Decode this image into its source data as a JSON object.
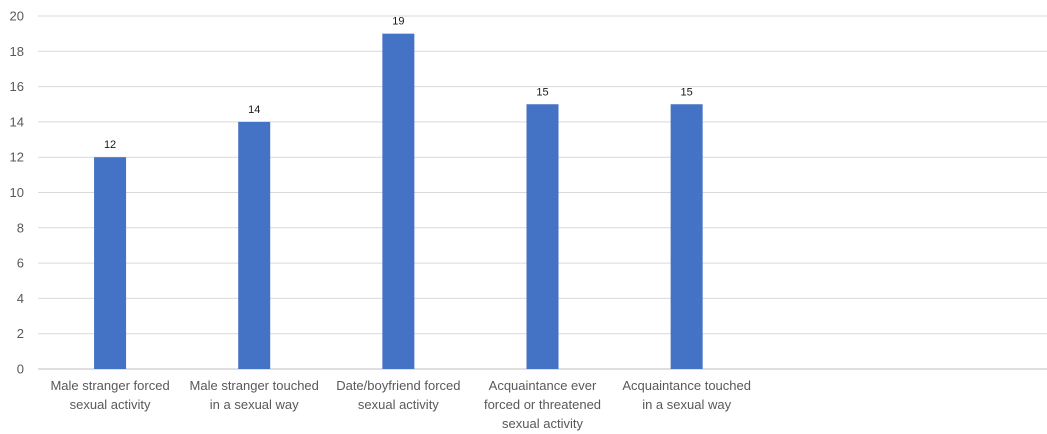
{
  "chart_data": {
    "type": "bar",
    "categories": [
      [
        "Male stranger forced",
        "sexual activity"
      ],
      [
        "Male stranger touched",
        "in a sexual way"
      ],
      [
        "Date/boyfriend forced",
        "sexual activity"
      ],
      [
        "Acquaintance ever",
        "forced or threatened",
        "sexual activity"
      ],
      [
        "Acquaintance touched",
        "in a sexual way"
      ]
    ],
    "values": [
      12,
      14,
      19,
      15,
      15
    ],
    "data_labels": [
      "12",
      "14",
      "19",
      "15",
      "15"
    ],
    "yticks": [
      "0",
      "2",
      "4",
      "6",
      "8",
      "10",
      "12",
      "14",
      "16",
      "18",
      "20"
    ],
    "ylim": [
      0,
      20
    ],
    "category_slots": 7,
    "grid": true,
    "legend": "none",
    "colors": {
      "bar": "#4472C4",
      "grid": "#d9d9d9",
      "axis": "#bfbfbf"
    }
  }
}
